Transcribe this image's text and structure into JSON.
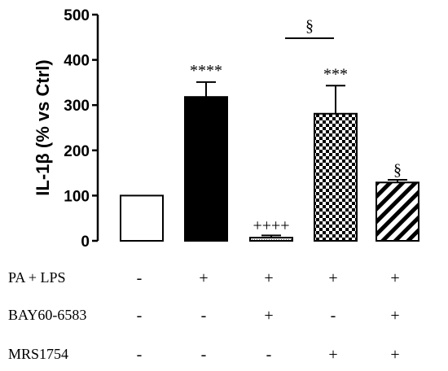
{
  "chart_data": {
    "type": "bar",
    "ylabel": "IL-1β (% vs Ctrl)",
    "ylim": [
      0,
      500
    ],
    "yticks": [
      "0",
      "100",
      "200",
      "300",
      "400",
      "500"
    ],
    "grid": false,
    "legend": "none",
    "bars": [
      {
        "value": 100,
        "error": 0,
        "fill": "white",
        "annotation": ""
      },
      {
        "value": 318,
        "error": 33,
        "fill": "black",
        "annotation": "****"
      },
      {
        "value": 7,
        "error": 5,
        "fill": "dotted",
        "annotation": "++++"
      },
      {
        "value": 281,
        "error": 62,
        "fill": "checker",
        "annotation": "***"
      },
      {
        "value": 129,
        "error": 6,
        "fill": "hatched",
        "annotation": "§"
      }
    ],
    "comparison": {
      "from": 3,
      "to": 4,
      "symbol": "§"
    },
    "conditions": [
      {
        "label": "PA + LPS",
        "signs": [
          "-",
          "+",
          "+",
          "+",
          "+"
        ]
      },
      {
        "label": "BAY60-6583",
        "signs": [
          "-",
          "-",
          "+",
          "-",
          "+"
        ]
      },
      {
        "label": "MRS1754",
        "signs": [
          "-",
          "-",
          "-",
          "+",
          "+"
        ]
      }
    ]
  }
}
